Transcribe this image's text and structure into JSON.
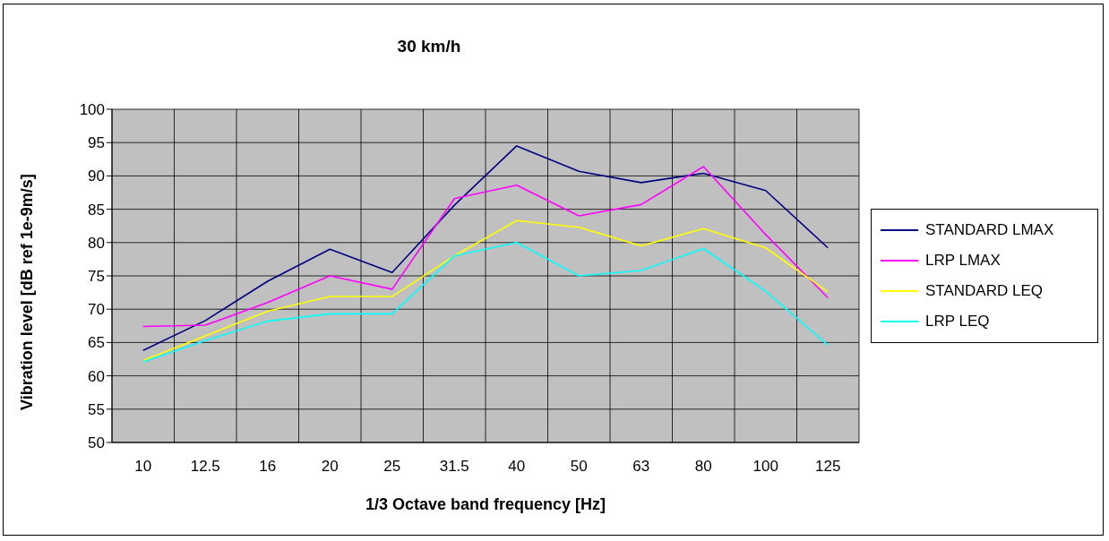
{
  "chart_data": {
    "type": "line",
    "title": "30 km/h",
    "xlabel": "1/3 Octave band frequency [Hz]",
    "ylabel": "Vibration level [dB ref 1e-9m/s]",
    "categories": [
      "10",
      "12.5",
      "16",
      "20",
      "25",
      "31.5",
      "40",
      "50",
      "63",
      "80",
      "100",
      "125"
    ],
    "series": [
      {
        "name": "STANDARD LMAX",
        "color": "#000080",
        "values": [
          63.8,
          68.3,
          74.2,
          79.0,
          75.5,
          85.6,
          94.5,
          90.7,
          89.0,
          90.4,
          87.8,
          79.2
        ]
      },
      {
        "name": "LRP LMAX",
        "color": "#ff00ff",
        "values": [
          67.4,
          67.6,
          71.0,
          75.0,
          73.0,
          86.6,
          88.6,
          84.0,
          85.7,
          91.4,
          81.2,
          71.7
        ]
      },
      {
        "name": "STANDARD LEQ",
        "color": "#ffff00",
        "values": [
          62.3,
          66.0,
          69.7,
          71.9,
          71.9,
          78.0,
          83.3,
          82.3,
          79.5,
          82.1,
          79.2,
          72.6
        ]
      },
      {
        "name": "LRP LEQ",
        "color": "#00ffff",
        "values": [
          62.1,
          65.3,
          68.2,
          69.3,
          69.3,
          78.0,
          80.0,
          75.0,
          75.8,
          79.1,
          72.7,
          64.6
        ]
      }
    ],
    "ylim": [
      50,
      100
    ],
    "yticks": [
      50,
      55,
      60,
      65,
      70,
      75,
      80,
      85,
      90,
      95,
      100
    ],
    "grid": true,
    "legend": "right",
    "marker": "none",
    "line_style": "solid"
  }
}
